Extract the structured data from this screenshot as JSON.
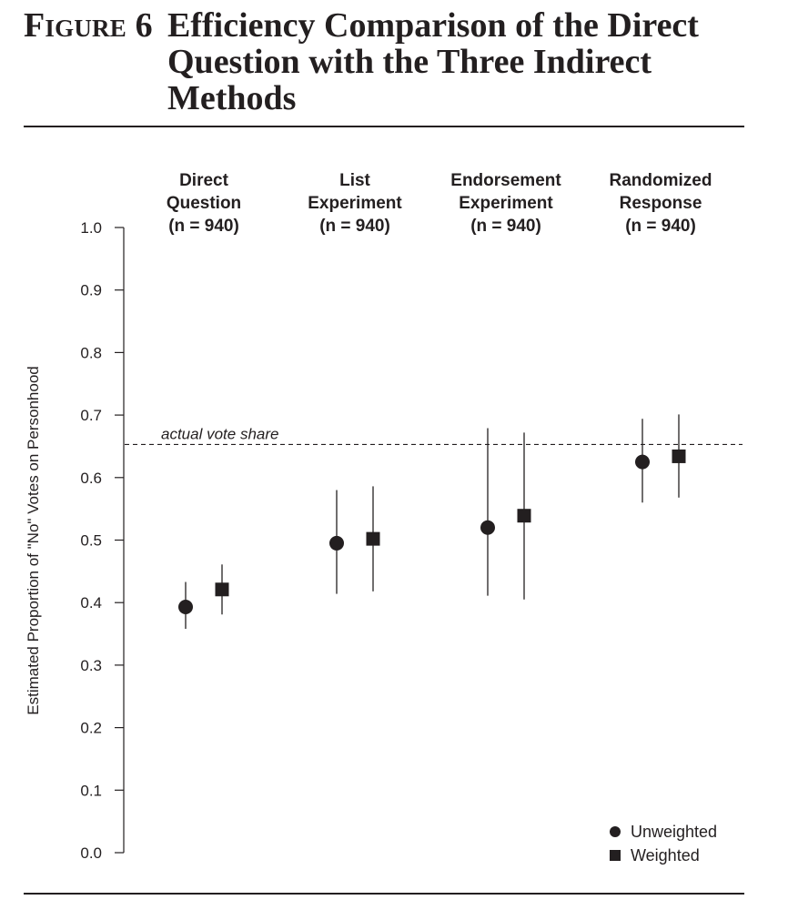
{
  "figure": {
    "label": "Figure 6",
    "title": "Efficiency Comparison of the Direct\nQuestion with the Three Indirect\nMethods"
  },
  "chart_data": {
    "type": "scatter",
    "ylabel": "Estimated Proportion of \"No\" Votes on Personhood",
    "ylim": [
      0.0,
      1.0
    ],
    "yticks": [
      "0.0",
      "0.1",
      "0.2",
      "0.3",
      "0.4",
      "0.5",
      "0.6",
      "0.7",
      "0.8",
      "0.9",
      "1.0"
    ],
    "grid": false,
    "legend_position": "bottom-right",
    "categories": [
      {
        "label": [
          "Direct",
          "Question",
          "(n = 940)"
        ]
      },
      {
        "label": [
          "List",
          "Experiment",
          "(n = 940)"
        ]
      },
      {
        "label": [
          "Endorsement",
          "Experiment",
          "(n = 940)"
        ]
      },
      {
        "label": [
          "Randomized",
          "Response",
          "(n = 940)"
        ]
      }
    ],
    "series": [
      {
        "name": "Unweighted",
        "marker": "circle",
        "estimates": [
          0.393,
          0.495,
          0.52,
          0.625
        ],
        "lower": [
          0.358,
          0.414,
          0.411,
          0.56
        ],
        "upper": [
          0.433,
          0.58,
          0.679,
          0.694
        ]
      },
      {
        "name": "Weighted",
        "marker": "square",
        "estimates": [
          0.421,
          0.502,
          0.539,
          0.634
        ],
        "lower": [
          0.381,
          0.418,
          0.405,
          0.568
        ],
        "upper": [
          0.461,
          0.586,
          0.672,
          0.701
        ]
      }
    ],
    "reference_line": {
      "value": 0.653,
      "label": "actual vote share",
      "style": "dashed"
    },
    "colors": {
      "ink": "#231f20"
    }
  }
}
